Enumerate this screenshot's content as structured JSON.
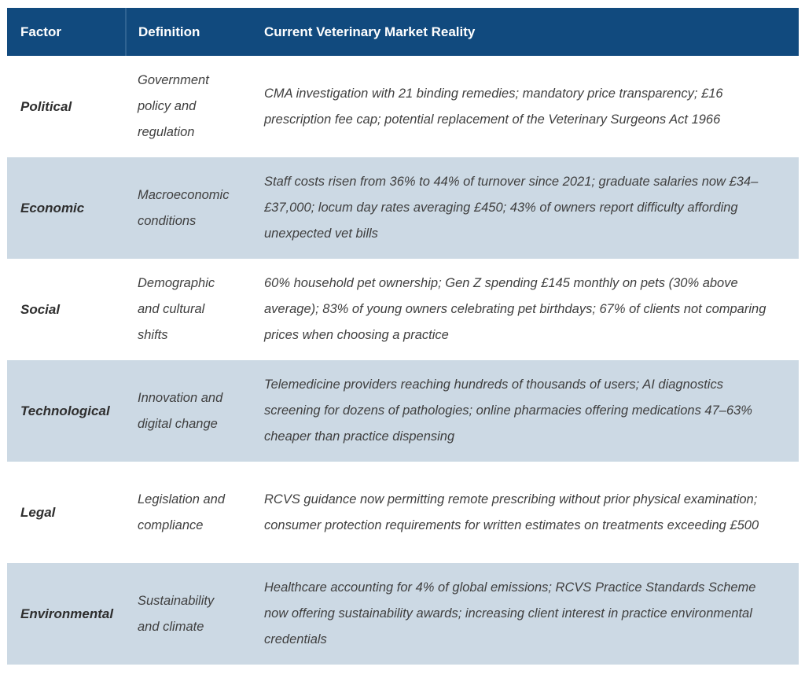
{
  "table": {
    "columns": [
      {
        "label": "Factor"
      },
      {
        "label": "Definition"
      },
      {
        "label": "Current Veterinary Market Reality"
      }
    ],
    "rows": [
      {
        "factor": "Political",
        "definition": "Government policy and regulation",
        "reality": "CMA investigation with 21 binding remedies; mandatory price transparency; £16 prescription fee cap; potential replacement of the Veterinary Surgeons Act 1966"
      },
      {
        "factor": "Economic",
        "definition": "Macroeconomic conditions",
        "reality": "Staff costs risen from 36% to 44% of turnover since 2021; graduate salaries now £34–£37,000; locum day rates averaging £450; 43% of owners report difficulty affording unexpected vet bills"
      },
      {
        "factor": "Social",
        "definition": "Demographic and cultural shifts",
        "reality": "60% household pet ownership; Gen Z spending £145 monthly on pets (30% above average); 83% of young owners celebrating pet birthdays; 67% of clients not comparing prices when choosing a practice"
      },
      {
        "factor": "Technological",
        "definition": "Innovation and digital change",
        "reality": "Telemedicine providers reaching hundreds of thousands of users; AI diagnostics screening for dozens of pathologies; online pharmacies offering medications 47–63% cheaper than practice dispensing"
      },
      {
        "factor": "Legal",
        "definition": "Legislation and compliance",
        "reality": "RCVS guidance now permitting remote prescribing without prior physical examination; consumer protection requirements for written estimates on treatments exceeding £500"
      },
      {
        "factor": "Environmental",
        "definition": "Sustainability and climate",
        "reality": "Healthcare accounting for 4% of global emissions; RCVS Practice Standards Scheme now offering sustainability awards; increasing client interest in practice environmental credentials"
      }
    ],
    "colors": {
      "header_bg": "#114A7E",
      "header_text": "#FFFFFF",
      "row_bg": "#FFFFFF",
      "row_alt_bg": "#CCD9E4",
      "body_text": "#3F3F3F"
    }
  }
}
